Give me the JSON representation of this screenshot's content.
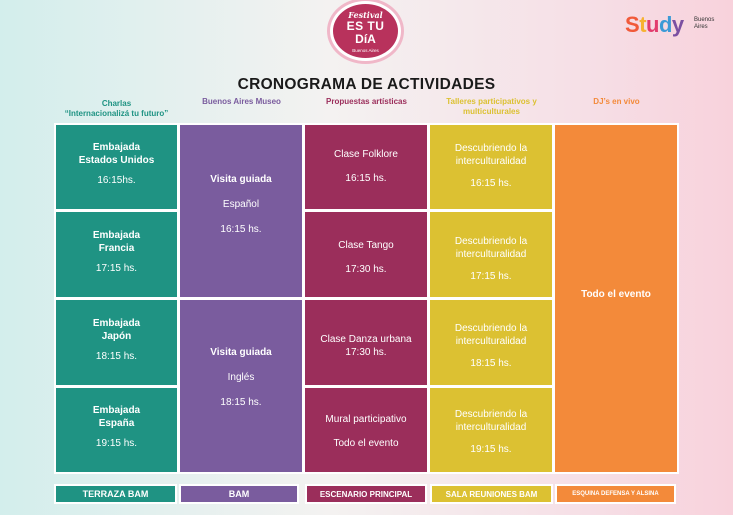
{
  "logo": {
    "festival": "Festival",
    "line1": "ES TU",
    "line2": "DíA",
    "city": "Buenos Aires"
  },
  "brand": {
    "word": "Study",
    "city_line1": "Buenos",
    "city_line2": "Aires",
    "letter_colors": [
      "#f15a3a",
      "#f7b231",
      "#e23c6d",
      "#3c9ad6",
      "#7b4fa1"
    ]
  },
  "title": "CRONOGRAMA DE ACTIVIDADES",
  "columns": [
    {
      "line1": "Charlas",
      "line2": "“Internacionalizá tu futuro”",
      "color": "#1f9383"
    },
    {
      "line1": "Buenos Aires Museo",
      "color": "#7a5c9e"
    },
    {
      "line1": "Propuestas artísticas",
      "color": "#9b2e5b"
    },
    {
      "line1": "Talleres participativos y",
      "line2": "multiculturales",
      "color": "#dcc132"
    },
    {
      "line1": "DJ’s en vivo",
      "color": "#f38a3a"
    }
  ],
  "charlas": [
    {
      "name1": "Embajada",
      "name2": "Estados Unidos",
      "time": "16:15hs."
    },
    {
      "name1": "Embajada",
      "name2": "Francia",
      "time": "17:15 hs."
    },
    {
      "name1": "Embajada",
      "name2": "Japón",
      "time": "18:15 hs."
    },
    {
      "name1": "Embajada",
      "name2": "España",
      "time": "19:15 hs."
    }
  ],
  "museo": [
    {
      "name": "Visita guiada",
      "lang": "Español",
      "time": "16:15 hs."
    },
    {
      "name": "Visita guiada",
      "lang": "Inglés",
      "time": "18:15 hs."
    }
  ],
  "artisticas": [
    {
      "name": "Clase Folklore",
      "time": "16:15 hs."
    },
    {
      "name": "Clase Tango",
      "time": "17:30 hs."
    },
    {
      "name": "Clase Danza urbana",
      "time": "17:30 hs."
    },
    {
      "name": "Mural participativo",
      "time": "Todo el evento"
    }
  ],
  "talleres": [
    {
      "line1": "Descubriendo la",
      "line2": "interculturalidad",
      "time": "16:15 hs."
    },
    {
      "line1": "Descubriendo la",
      "line2": "interculturalidad",
      "time": "17:15 hs."
    },
    {
      "line1": "Descubriendo la",
      "line2": "interculturalidad",
      "time": "18:15 hs."
    },
    {
      "line1": "Descubriendo la",
      "line2": "interculturalidad",
      "time": "19:15 hs."
    }
  ],
  "djs": {
    "label": "Todo el evento"
  },
  "locations": [
    {
      "label": "TERRAZA BAM",
      "color": "#1f9383"
    },
    {
      "label": "BAM",
      "color": "#7a5c9e"
    },
    {
      "label": "ESCENARIO PRINCIPAL",
      "color": "#9b2e5b"
    },
    {
      "label": "SALA REUNIONES BAM",
      "color": "#dcc132"
    },
    {
      "label": "ESQUINA DEFENSA Y ALSINA",
      "color": "#f38a3a"
    }
  ]
}
